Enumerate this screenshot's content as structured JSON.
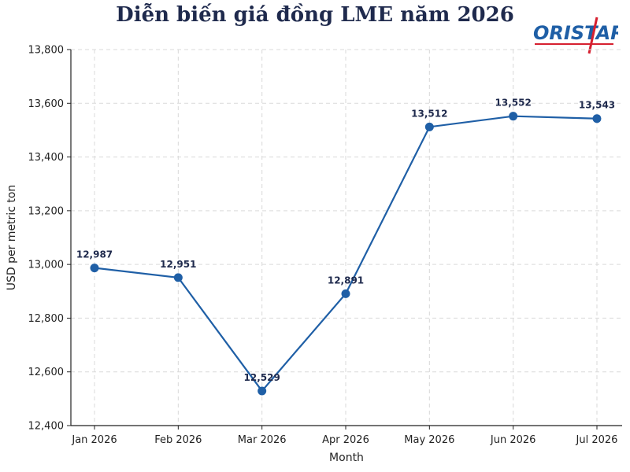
{
  "title": "Diễn biến giá đồng LME năm 2026",
  "logo": {
    "text": "ORISTAR"
  },
  "colors": {
    "line": "#1f5fa6",
    "title": "#1f2a4d",
    "logo_blue": "#1f5fa6",
    "logo_red": "#d62030"
  },
  "chart_data": {
    "type": "line",
    "title": "Diễn biến giá đồng LME năm 2026",
    "xlabel": "Month",
    "ylabel": "USD per metric ton",
    "categories": [
      "Jan 2026",
      "Feb 2026",
      "Mar 2026",
      "Apr 2026",
      "May 2026",
      "Jun 2026",
      "Jul 2026"
    ],
    "values": [
      12987,
      12951,
      12529,
      12891,
      13512,
      13552,
      13543
    ],
    "labels": [
      "12,987",
      "12,951",
      "12,529",
      "12,891",
      "13,512",
      "13,552",
      "13,543"
    ],
    "ylim": [
      12400,
      13800
    ],
    "yticks": [
      12400,
      12600,
      12800,
      13000,
      13200,
      13400,
      13600,
      13800
    ],
    "ytick_labels": [
      "12,400",
      "12,600",
      "12,800",
      "13,000",
      "13,200",
      "13,400",
      "13,600",
      "13,800"
    ],
    "grid": true
  }
}
